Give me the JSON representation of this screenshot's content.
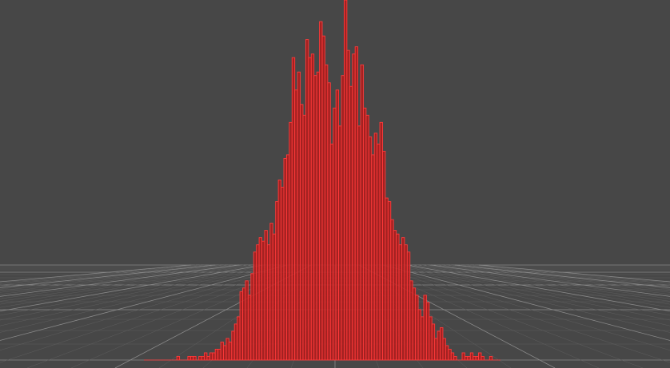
{
  "viewport": {
    "background_color": "#474747",
    "grid_color": "#8a8a8a",
    "grid_minor_color": "#5e5e5e",
    "grid_visible": true,
    "perspective": "3d-floor-grid"
  },
  "chart_data": {
    "type": "bar",
    "title": "",
    "xlabel": "",
    "ylabel": "",
    "grid": true,
    "bar_fill": "#b31b1b",
    "bar_edge": "#ff3a3a",
    "ylim": [
      0,
      100
    ],
    "values": [
      0,
      0,
      0,
      0,
      0,
      0,
      0,
      0,
      0,
      0,
      0,
      0,
      1,
      0,
      0,
      0,
      1,
      1,
      1,
      0,
      1,
      1,
      2,
      1,
      2,
      2,
      3,
      3,
      5,
      4,
      6,
      5,
      8,
      10,
      12,
      19,
      20,
      22,
      18,
      24,
      30,
      32,
      34,
      33,
      36,
      32,
      38,
      35,
      44,
      50,
      48,
      56,
      57,
      66,
      84,
      75,
      80,
      71,
      68,
      89,
      84,
      85,
      79,
      80,
      94,
      90,
      82,
      77,
      60,
      70,
      75,
      65,
      79,
      100,
      86,
      76,
      85,
      87,
      65,
      82,
      70,
      68,
      62,
      57,
      63,
      60,
      66,
      58,
      45,
      44,
      39,
      36,
      35,
      32,
      34,
      32,
      30,
      22,
      20,
      18,
      14,
      12,
      18,
      16,
      12,
      10,
      6,
      8,
      9,
      6,
      4,
      3,
      2,
      1,
      0,
      0,
      2,
      1,
      1,
      2,
      1,
      1,
      2,
      1,
      0,
      0,
      1,
      0,
      0,
      0
    ]
  }
}
